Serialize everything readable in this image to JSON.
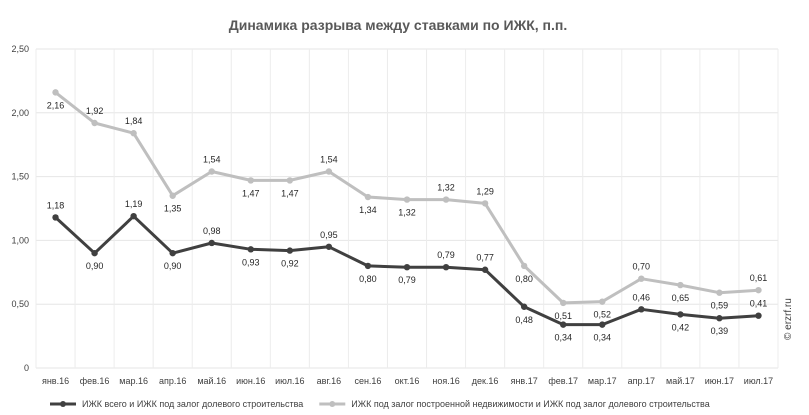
{
  "chart_data": {
    "type": "line",
    "title": "Динамика разрыва между ставками по ИЖК, п.п.",
    "categories": [
      "янв.16",
      "фев.16",
      "мар.16",
      "апр.16",
      "май.16",
      "июн.16",
      "июл.16",
      "авг.16",
      "сен.16",
      "окт.16",
      "ноя.16",
      "дек.16",
      "янв.17",
      "фев.17",
      "мар.17",
      "апр.17",
      "май.17",
      "июн.17",
      "июл.17"
    ],
    "series": [
      {
        "name": "ИЖК всего и ИЖК под залог долевого строительства",
        "color": "#404040",
        "values": [
          1.18,
          0.9,
          1.19,
          0.9,
          0.98,
          0.93,
          0.92,
          0.95,
          0.8,
          0.79,
          0.79,
          0.77,
          0.48,
          0.34,
          0.34,
          0.46,
          0.42,
          0.39,
          0.41
        ],
        "labels": [
          "1,18",
          "0,90",
          "1,19",
          "0,90",
          "0,98",
          "0,93",
          "0,92",
          "0,95",
          "0,80",
          "0,79",
          "0,79",
          "0,77",
          "0,48",
          "0,34",
          "0,34",
          "0,46",
          "0,42",
          "0,39",
          "0,41"
        ]
      },
      {
        "name": "ИЖК под залог построенной недвижимости и ИЖК под залог долевого строительства",
        "color": "#bfbfbf",
        "values": [
          2.16,
          1.92,
          1.84,
          1.35,
          1.54,
          1.47,
          1.47,
          1.54,
          1.34,
          1.32,
          1.32,
          1.29,
          0.8,
          0.51,
          0.52,
          0.7,
          0.65,
          0.59,
          0.61
        ],
        "labels": [
          "2,16",
          "1,92",
          "1,84",
          "1,35",
          "1,54",
          "1,47",
          "1,47",
          "1,54",
          "1,34",
          "1,32",
          "1,32",
          "1,29",
          "0,80",
          "0,51",
          "0,52",
          "0,70",
          "0,65",
          "0,59",
          "0,61"
        ]
      }
    ],
    "ylim": [
      0,
      2.5
    ],
    "yticks": [
      0,
      0.5,
      1.0,
      1.5,
      2.0,
      2.5
    ],
    "ytick_labels": [
      "0",
      "0,50",
      "1,00",
      "1,50",
      "2,00",
      "2,50"
    ],
    "grid": true,
    "legend_position": "bottom",
    "watermark": "© erzrf.ru"
  }
}
